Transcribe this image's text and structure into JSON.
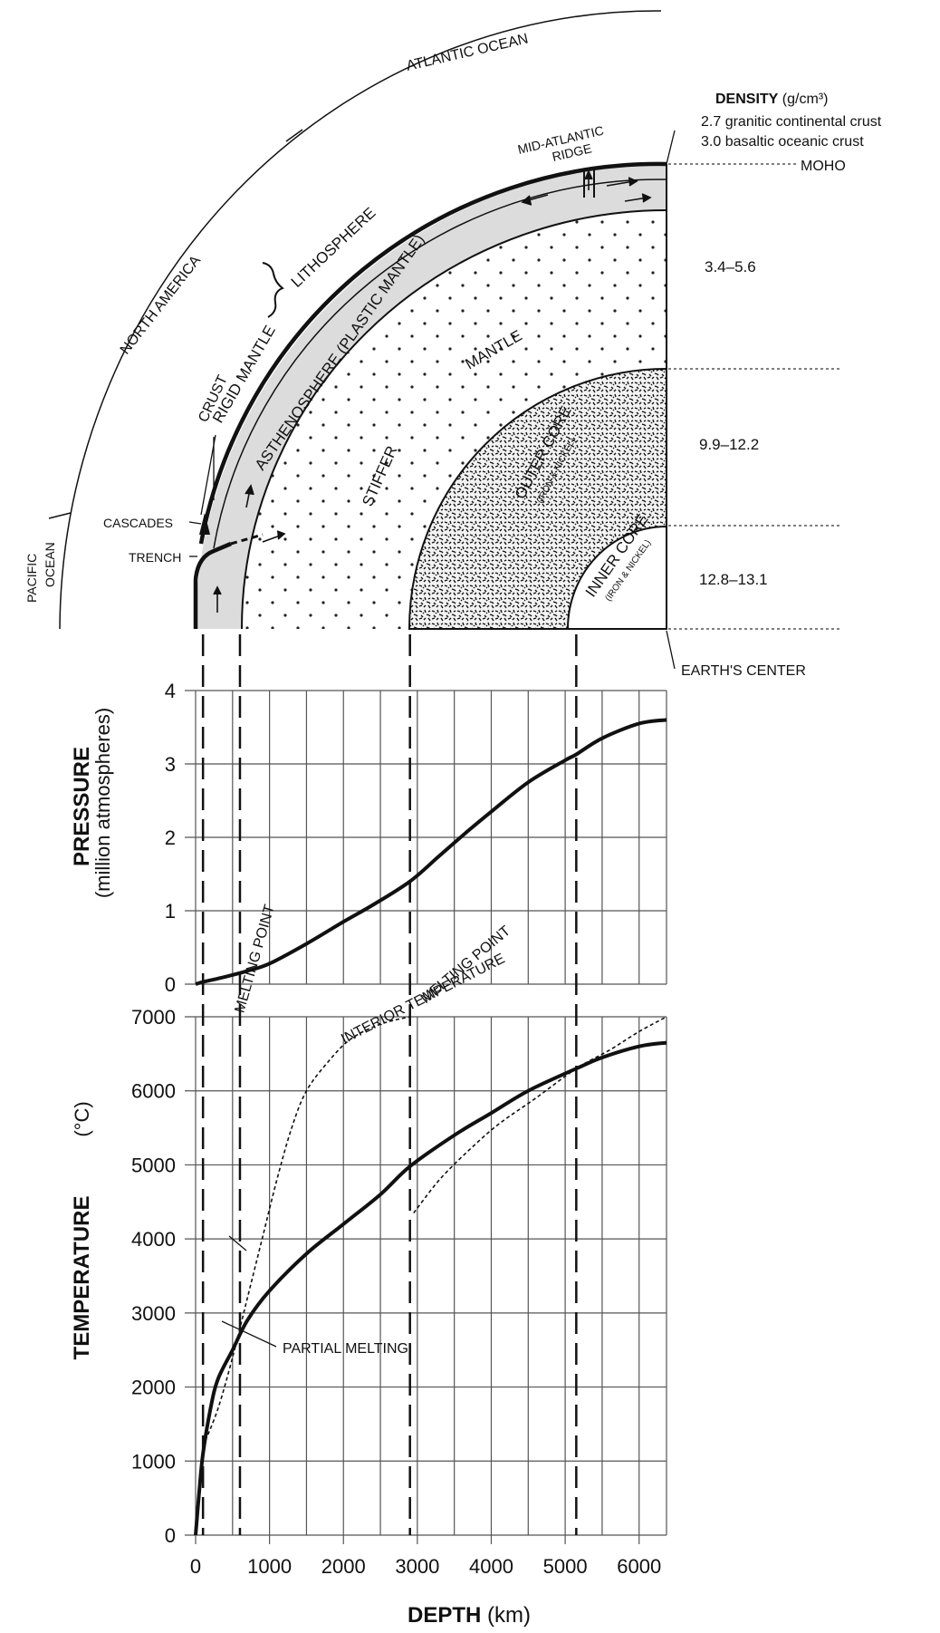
{
  "top_labels": {
    "atlantic_ocean": "ATLANTIC OCEAN",
    "north_america": "NORTH AMERICA",
    "pacific_ocean_1": "PACIFIC",
    "pacific_ocean_2": "OCEAN",
    "lithosphere": "LITHOSPHERE",
    "rigid_mantle": "RIGID MANTLE",
    "crust": "CRUST",
    "asthenosphere": "ASTHENOSPHERE (PLASTIC MANTLE)",
    "mantle": "MANTLE",
    "stiffer": "STIFFER",
    "outer_core": "OUTER CORE",
    "outer_core_sub": "(IRON & NICKEL)",
    "inner_core": "INNER CORE",
    "inner_core_sub": "(IRON & NICKEL)",
    "mid_atlantic_1": "MID-ATLANTIC",
    "mid_atlantic_2": "RIDGE",
    "cascades": "CASCADES",
    "trench": "TRENCH",
    "moho": "MOHO",
    "earths_center": "EARTH'S CENTER"
  },
  "density": {
    "title": "DENSITY",
    "unit": "(g/cm³)",
    "crust_line_1": "2.7 granitic continental crust",
    "crust_line_2": "3.0 basaltic oceanic crust",
    "mantle_range": "3.4–5.6",
    "outer_core_range": "9.9–12.2",
    "inner_core_range": "12.8–13.1"
  },
  "chart_data": [
    {
      "type": "line",
      "ylabel_bold": "PRESSURE",
      "ylabel_sub": "(million atmospheres)",
      "xlim": [
        0,
        6371
      ],
      "ylim": [
        0,
        4
      ],
      "yticks": [
        "0",
        "1",
        "2",
        "3",
        "4"
      ],
      "grid": true,
      "series": [
        {
          "x": [
            0,
            100,
            400,
            700,
            1000,
            1500,
            2000,
            2400,
            2900,
            3300,
            3700,
            4000,
            4500,
            5000,
            5150,
            5500,
            6000,
            6371
          ],
          "y": [
            0.0,
            0.03,
            0.1,
            0.18,
            0.28,
            0.55,
            0.85,
            1.08,
            1.4,
            1.75,
            2.1,
            2.35,
            2.75,
            3.05,
            3.13,
            3.35,
            3.55,
            3.6
          ]
        }
      ]
    },
    {
      "type": "line",
      "ylabel_bold": "TEMPERATURE",
      "ylabel_sub": "(°C)",
      "xlabel_bold": "DEPTH",
      "xlabel_sub": "(km)",
      "xlim": [
        0,
        6371
      ],
      "ylim": [
        0,
        7000
      ],
      "xticks": [
        "0",
        "1000",
        "2000",
        "3000",
        "4000",
        "5000",
        "6000"
      ],
      "yticks": [
        "0",
        "1000",
        "2000",
        "3000",
        "4000",
        "5000",
        "6000",
        "7000"
      ],
      "grid": true,
      "annotations": [
        "INTERIOR TEMPERATURE",
        "MELTING POINT",
        "MELTING POINT",
        "PARTIAL MELTING"
      ],
      "series": [
        {
          "name": "INTERIOR TEMPERATURE",
          "x": [
            0,
            50,
            100,
            200,
            300,
            500,
            700,
            1000,
            1500,
            2000,
            2500,
            2900,
            3500,
            4000,
            4500,
            5150,
            5500,
            6000,
            6371
          ],
          "y": [
            0,
            600,
            1100,
            1700,
            2100,
            2500,
            2900,
            3300,
            3800,
            4200,
            4600,
            4980,
            5400,
            5700,
            6000,
            6300,
            6450,
            6600,
            6650
          ]
        },
        {
          "name": "MELTING POINT",
          "x": [
            100,
            300,
            500,
            700,
            900,
            1100,
            1300,
            1500,
            1800,
            2100,
            2500,
            2900
          ],
          "y": [
            1200,
            1700,
            2400,
            3200,
            4000,
            4800,
            5500,
            6000,
            6400,
            6700,
            6900,
            7000
          ]
        },
        {
          "name": "MELTING POINT",
          "x": [
            2950,
            3300,
            3700,
            4100,
            4600,
            5150,
            5600,
            6000,
            6371
          ],
          "y": [
            4350,
            4800,
            5200,
            5550,
            5900,
            6300,
            6550,
            6800,
            7000
          ]
        }
      ]
    }
  ]
}
